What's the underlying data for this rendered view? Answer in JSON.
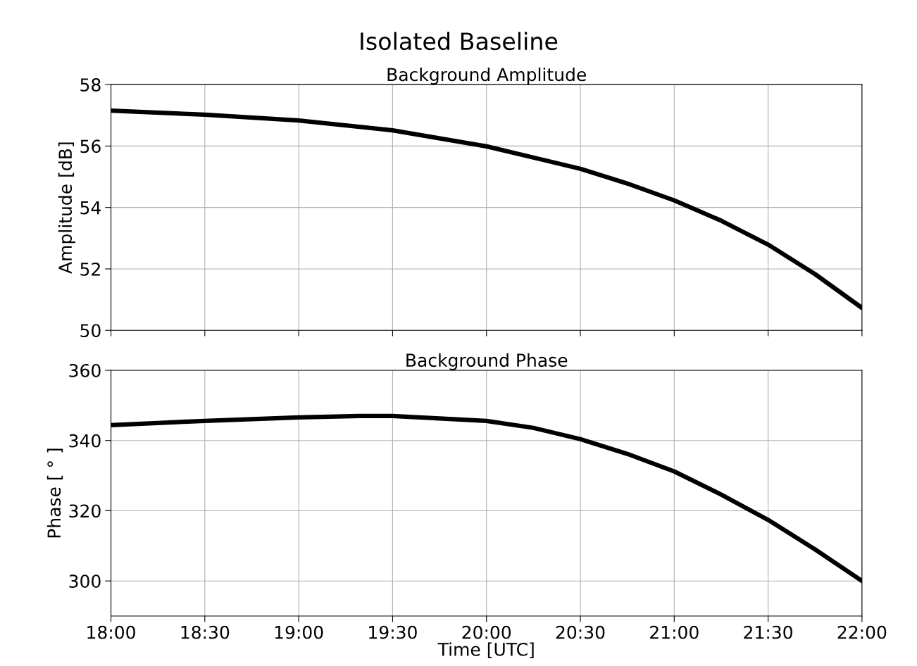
{
  "chart_data": [
    {
      "type": "line",
      "title": "Isolated Baseline",
      "subtitle": "Background Amplitude",
      "ylabel": "Amplitude [dB]",
      "x": [
        18,
        18.5,
        19,
        19.5,
        20,
        20.5,
        20.75,
        21,
        21.25,
        21.5,
        21.75,
        22
      ],
      "series": [
        {
          "color": "#000000",
          "values": [
            57.15,
            57.02,
            56.83,
            56.51,
            55.99,
            55.26,
            54.78,
            54.23,
            53.57,
            52.79,
            51.83,
            50.73
          ]
        }
      ],
      "xlim": [
        18,
        22
      ],
      "xticks": [
        {
          "value": 18,
          "label": null
        },
        {
          "value": 18.5,
          "label": null
        },
        {
          "value": 19,
          "label": null
        },
        {
          "value": 19.5,
          "label": null
        },
        {
          "value": 20,
          "label": null
        },
        {
          "value": 20.5,
          "label": null
        },
        {
          "value": 21,
          "label": null
        },
        {
          "value": 21.5,
          "label": null
        },
        {
          "value": 22,
          "label": null
        }
      ],
      "ylim": [
        50,
        58
      ],
      "yticks": [
        50,
        52,
        54,
        56,
        58
      ],
      "grid": true,
      "tick_labels": "y",
      "line_style": "solid",
      "marker": "none"
    },
    {
      "type": "line",
      "title": "Background Phase",
      "xlabel": "Time [UTC]",
      "ylabel": "Phase [ ° ]",
      "x": [
        18,
        18.5,
        19,
        19.333,
        19.5,
        20,
        20.25,
        20.5,
        20.75,
        21,
        21.25,
        21.5,
        21.75,
        22
      ],
      "series": [
        {
          "color": "#000000",
          "values": [
            344.4,
            345.6,
            346.6,
            347,
            347,
            345.6,
            343.6,
            340.4,
            336.2,
            331.2,
            324.6,
            317.4,
            309,
            300
          ]
        }
      ],
      "xlim": [
        18,
        22
      ],
      "xticks": [
        {
          "value": 18,
          "label": "18:00"
        },
        {
          "value": 18.5,
          "label": "18:30"
        },
        {
          "value": 19,
          "label": "19:00"
        },
        {
          "value": 19.5,
          "label": "19:30"
        },
        {
          "value": 20,
          "label": "20:00"
        },
        {
          "value": 20.5,
          "label": "20:30"
        },
        {
          "value": 21,
          "label": "21:00"
        },
        {
          "value": 21.5,
          "label": "21:30"
        },
        {
          "value": 22,
          "label": "22:00"
        }
      ],
      "ylim": [
        290,
        360
      ],
      "yticks": [
        300,
        320,
        340,
        360
      ],
      "grid": true,
      "line_style": "solid",
      "marker": "none"
    }
  ]
}
